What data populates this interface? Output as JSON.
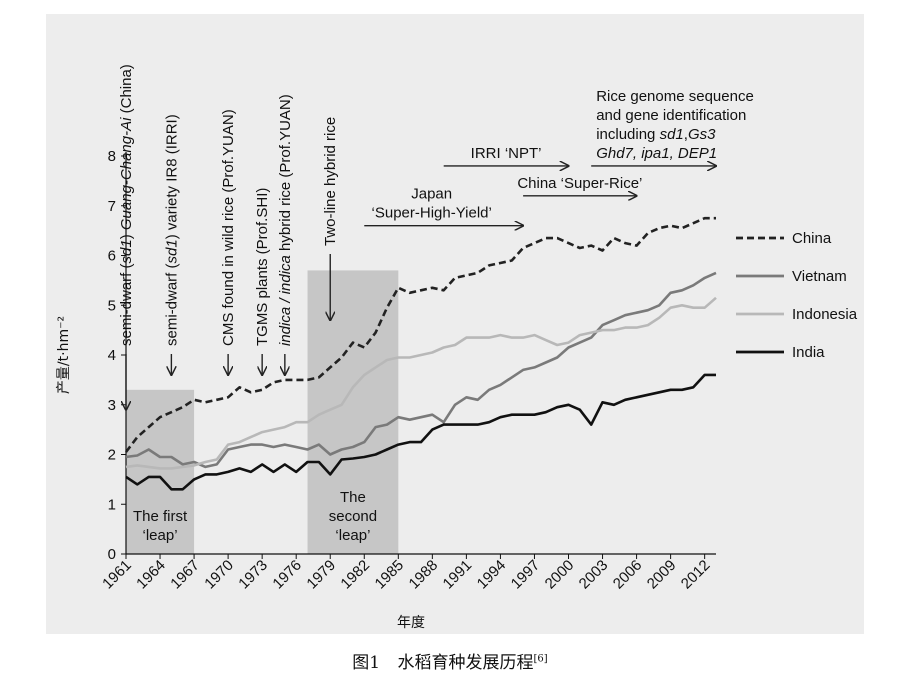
{
  "caption": {
    "label": "图1",
    "text": "水稻育种发展历程",
    "ref": "[6]"
  },
  "chart_data": {
    "type": "line",
    "title": "",
    "xlabel": "年度",
    "ylabel": "产量/t·hm⁻²",
    "xlim": [
      1961,
      2013
    ],
    "ylim": [
      0,
      8
    ],
    "x_ticks": [
      1961,
      1964,
      1967,
      1970,
      1973,
      1976,
      1979,
      1982,
      1985,
      1988,
      1991,
      1994,
      1997,
      2000,
      2003,
      2006,
      2009,
      2012
    ],
    "y_ticks": [
      0,
      1,
      2,
      3,
      4,
      5,
      6,
      7,
      8
    ],
    "legend_position": "right",
    "x": [
      1961,
      1962,
      1963,
      1964,
      1965,
      1966,
      1967,
      1968,
      1969,
      1970,
      1971,
      1972,
      1973,
      1974,
      1975,
      1976,
      1977,
      1978,
      1979,
      1980,
      1981,
      1982,
      1983,
      1984,
      1985,
      1986,
      1987,
      1988,
      1989,
      1990,
      1991,
      1992,
      1993,
      1994,
      1995,
      1996,
      1997,
      1998,
      1999,
      2000,
      2001,
      2002,
      2003,
      2004,
      2005,
      2006,
      2007,
      2008,
      2009,
      2010,
      2011,
      2012,
      2013
    ],
    "series": [
      {
        "name": "China",
        "color": "#222222",
        "dash": "dashed",
        "values": [
          2.05,
          2.35,
          2.55,
          2.75,
          2.85,
          2.95,
          3.1,
          3.05,
          3.1,
          3.15,
          3.35,
          3.25,
          3.3,
          3.45,
          3.5,
          3.5,
          3.5,
          3.55,
          3.75,
          3.95,
          4.25,
          4.15,
          4.45,
          4.95,
          5.35,
          5.25,
          5.3,
          5.35,
          5.3,
          5.55,
          5.6,
          5.65,
          5.8,
          5.85,
          5.9,
          6.15,
          6.25,
          6.35,
          6.35,
          6.25,
          6.15,
          6.2,
          6.1,
          6.35,
          6.25,
          6.2,
          6.45,
          6.55,
          6.6,
          6.55,
          6.65,
          6.75,
          6.75
        ]
      },
      {
        "name": "Vietnam",
        "color": "#7a7a7a",
        "dash": "solid",
        "values": [
          1.95,
          1.98,
          2.1,
          1.95,
          1.95,
          1.8,
          1.85,
          1.75,
          1.8,
          2.1,
          2.15,
          2.2,
          2.2,
          2.15,
          2.2,
          2.15,
          2.1,
          2.2,
          2.0,
          2.1,
          2.15,
          2.25,
          2.55,
          2.6,
          2.75,
          2.7,
          2.75,
          2.8,
          2.65,
          3.0,
          3.15,
          3.1,
          3.3,
          3.4,
          3.55,
          3.7,
          3.75,
          3.85,
          3.95,
          4.15,
          4.25,
          4.35,
          4.6,
          4.7,
          4.8,
          4.85,
          4.9,
          5.0,
          5.25,
          5.3,
          5.4,
          5.55,
          5.65
        ]
      },
      {
        "name": "Indonesia",
        "color": "#b8b8b8",
        "dash": "solid",
        "values": [
          1.75,
          1.78,
          1.75,
          1.72,
          1.72,
          1.75,
          1.78,
          1.85,
          1.9,
          2.2,
          2.25,
          2.35,
          2.45,
          2.5,
          2.55,
          2.65,
          2.65,
          2.8,
          2.9,
          3.0,
          3.35,
          3.6,
          3.75,
          3.9,
          3.95,
          3.95,
          4.0,
          4.05,
          4.15,
          4.2,
          4.35,
          4.35,
          4.35,
          4.4,
          4.35,
          4.35,
          4.4,
          4.3,
          4.2,
          4.25,
          4.4,
          4.45,
          4.5,
          4.5,
          4.55,
          4.55,
          4.6,
          4.75,
          4.95,
          5.0,
          4.95,
          4.95,
          5.15
        ]
      },
      {
        "name": "India",
        "color": "#111111",
        "dash": "solid",
        "values": [
          1.55,
          1.4,
          1.55,
          1.55,
          1.3,
          1.3,
          1.5,
          1.6,
          1.6,
          1.65,
          1.72,
          1.65,
          1.8,
          1.65,
          1.8,
          1.65,
          1.85,
          1.85,
          1.6,
          1.9,
          1.92,
          1.95,
          2.0,
          2.1,
          2.2,
          2.25,
          2.25,
          2.5,
          2.6,
          2.6,
          2.6,
          2.6,
          2.65,
          2.75,
          2.8,
          2.8,
          2.8,
          2.85,
          2.95,
          3.0,
          2.9,
          2.6,
          3.05,
          3.0,
          3.1,
          3.15,
          3.2,
          3.25,
          3.3,
          3.3,
          3.35,
          3.6,
          3.6
        ]
      }
    ],
    "shaded_regions": [
      {
        "x_start": 1961,
        "x_end": 1967,
        "y_top": 3.3,
        "label_lines": [
          "The first",
          "‘leap’"
        ]
      },
      {
        "x_start": 1977,
        "x_end": 1985,
        "y_top": 5.7,
        "label_lines": [
          "The",
          "second",
          "‘leap’"
        ]
      }
    ],
    "vertical_annotations": [
      {
        "x": 1961,
        "parts": [
          {
            "t": "semi-dwarf ("
          },
          {
            "t": "sd1",
            "i": true
          },
          {
            "t": ") "
          },
          {
            "t": "Guang-Chang-Ai",
            "i": true
          },
          {
            "t": " (China)"
          }
        ]
      },
      {
        "x": 1965,
        "parts": [
          {
            "t": "semi-dwarf ("
          },
          {
            "t": "sd1",
            "i": true
          },
          {
            "t": ") variety IR8 (IRRI)"
          }
        ]
      },
      {
        "x": 1970,
        "parts": [
          {
            "t": "CMS found in wild rice (Prof.YUAN)"
          }
        ]
      },
      {
        "x": 1973,
        "parts": [
          {
            "t": "TGMS plants (Prof.SHI)"
          }
        ]
      },
      {
        "x": 1975,
        "parts": [
          {
            "t": "indica / indica",
            "i": true
          },
          {
            "t": " hybrid rice (Prof.YUAN)"
          }
        ]
      },
      {
        "x": 1979,
        "parts": [
          {
            "t": "Two-line hybrid rice"
          }
        ]
      }
    ],
    "horizontal_annotations": [
      {
        "x_start": 1982,
        "x_end": 1996,
        "y": 6.6,
        "lines": [
          [
            {
              "t": "Japan"
            }
          ],
          [
            {
              "t": "‘Super-High-Yield’"
            }
          ]
        ]
      },
      {
        "x_start": 1989,
        "x_end": 2000,
        "y": 7.8,
        "lines": [
          [
            {
              "t": "IRRI ‘NPT’"
            }
          ]
        ]
      },
      {
        "x_start": 1996,
        "x_end": 2006,
        "y": 7.2,
        "lines": [
          [
            {
              "t": "China ‘Super-Rice’"
            }
          ]
        ]
      },
      {
        "x_start": 2002,
        "x_end": 2013,
        "y": 7.8,
        "lines": [
          [
            {
              "t": "Rice genome sequence"
            }
          ],
          [
            {
              "t": "and gene identification"
            }
          ],
          [
            {
              "t": "including "
            },
            {
              "t": "sd1",
              "i": true
            },
            {
              "t": ","
            },
            {
              "t": "Gs3",
              "i": true
            }
          ],
          [
            {
              "t": "Ghd7, ipa1, DEP1",
              "i": true
            }
          ]
        ]
      }
    ]
  }
}
